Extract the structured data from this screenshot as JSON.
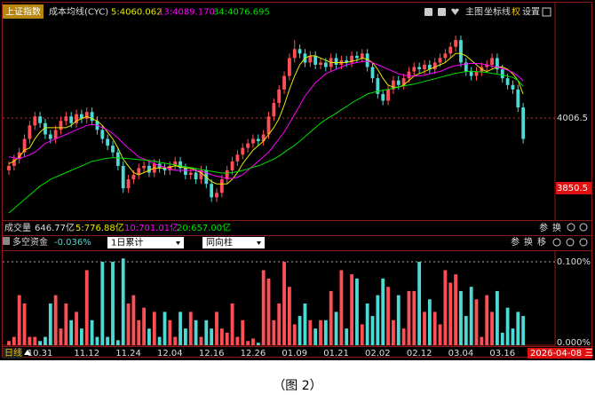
{
  "chart_data": [
    {
      "type": "candlestick",
      "title": "上证指数",
      "subtitle": "成本均线(CYC)",
      "up_color": "#ff4f55",
      "down_color": "#4fd9d4",
      "open": [
        3890,
        3900,
        3915,
        3930,
        3960,
        3990,
        4010,
        3995,
        3970,
        3960,
        3980,
        4000,
        4010,
        3995,
        4015,
        4005,
        4020,
        4000,
        3980,
        3960,
        3945,
        3930,
        3900,
        3850,
        3870,
        3880,
        3895,
        3900,
        3885,
        3905,
        3895,
        3890,
        3900,
        3910,
        3895,
        3880,
        3885,
        3870,
        3890,
        3860,
        3830,
        3840,
        3870,
        3890,
        3910,
        3925,
        3940,
        3950,
        3960,
        3955,
        3970,
        4010,
        4040,
        4070,
        4100,
        4140,
        4160,
        4150,
        4130,
        4145,
        4125,
        4130,
        4120,
        4140,
        4125,
        4135,
        4130,
        4145,
        4140,
        4150,
        4120,
        4095,
        4060,
        4045,
        4070,
        4090,
        4080,
        4095,
        4110,
        4120,
        4115,
        4125,
        4115,
        4130,
        4140,
        4150,
        4165,
        4180,
        4130,
        4110,
        4100,
        4110,
        4120,
        4125,
        4140,
        4115,
        4095,
        4080,
        4070,
        4030
      ],
      "high": [
        3910,
        3925,
        3940,
        3970,
        4000,
        4020,
        4020,
        4005,
        3980,
        3990,
        4010,
        4020,
        4020,
        4025,
        4025,
        4030,
        4030,
        4010,
        3990,
        3970,
        3955,
        3940,
        3910,
        3880,
        3890,
        3905,
        3910,
        3910,
        3915,
        3915,
        3905,
        3910,
        3920,
        3920,
        3905,
        3895,
        3895,
        3900,
        3900,
        3870,
        3850,
        3880,
        3900,
        3920,
        3935,
        3950,
        3960,
        3970,
        3970,
        3980,
        4020,
        4050,
        4080,
        4110,
        4150,
        4180,
        4170,
        4160,
        4155,
        4155,
        4140,
        4140,
        4150,
        4150,
        4145,
        4145,
        4155,
        4155,
        4160,
        4160,
        4130,
        4105,
        4070,
        4080,
        4100,
        4100,
        4105,
        4120,
        4130,
        4130,
        4135,
        4135,
        4140,
        4150,
        4160,
        4175,
        4190,
        4190,
        4140,
        4120,
        4120,
        4130,
        4135,
        4150,
        4150,
        4125,
        4105,
        4090,
        4080,
        4040
      ],
      "low": [
        3880,
        3890,
        3905,
        3920,
        3950,
        3980,
        3985,
        3960,
        3950,
        3950,
        3970,
        3990,
        3985,
        3985,
        3995,
        3995,
        3990,
        3970,
        3950,
        3935,
        3920,
        3890,
        3840,
        3840,
        3860,
        3870,
        3885,
        3875,
        3875,
        3885,
        3880,
        3880,
        3890,
        3885,
        3870,
        3870,
        3860,
        3860,
        3850,
        3820,
        3820,
        3830,
        3860,
        3880,
        3900,
        3915,
        3930,
        3940,
        3945,
        3945,
        3960,
        4000,
        4030,
        4060,
        4090,
        4130,
        4140,
        4120,
        4120,
        4115,
        4115,
        4110,
        4110,
        4115,
        4115,
        4120,
        4120,
        4130,
        4130,
        4110,
        4085,
        4050,
        4035,
        4035,
        4060,
        4070,
        4070,
        4085,
        4100,
        4105,
        4105,
        4105,
        4105,
        4120,
        4130,
        4140,
        4155,
        4120,
        4100,
        4090,
        4090,
        4100,
        4110,
        4115,
        4105,
        4085,
        4070,
        4060,
        4020,
        3950
      ],
      "close": [
        3900,
        3915,
        3930,
        3960,
        3990,
        4010,
        3995,
        3970,
        3960,
        3980,
        4000,
        4010,
        3995,
        4015,
        4005,
        4020,
        4000,
        3980,
        3960,
        3945,
        3930,
        3900,
        3850,
        3870,
        3880,
        3895,
        3900,
        3885,
        3905,
        3895,
        3890,
        3900,
        3910,
        3895,
        3880,
        3885,
        3870,
        3890,
        3860,
        3830,
        3840,
        3870,
        3890,
        3910,
        3925,
        3940,
        3950,
        3960,
        3955,
        3970,
        4010,
        4040,
        4070,
        4100,
        4140,
        4160,
        4150,
        4130,
        4145,
        4125,
        4130,
        4120,
        4140,
        4125,
        4135,
        4130,
        4145,
        4140,
        4150,
        4120,
        4095,
        4060,
        4045,
        4070,
        4090,
        4080,
        4095,
        4110,
        4120,
        4115,
        4125,
        4115,
        4130,
        4140,
        4150,
        4165,
        4180,
        4130,
        4110,
        4100,
        4110,
        4120,
        4125,
        4140,
        4115,
        4095,
        4080,
        4070,
        4030,
        3960
      ],
      "series": [
        {
          "name": "5:4060.062",
          "color": "#e8e800",
          "values": [
            3905,
            3910,
            3920,
            3935,
            3940,
            3960,
            3975,
            3985,
            3985,
            3985,
            3985,
            3985,
            3990,
            4000,
            4005,
            4010,
            4005,
            4000,
            3990,
            3975,
            3960,
            3940,
            3915,
            3900,
            3885,
            3880,
            3885,
            3890,
            3895,
            3895,
            3895,
            3897,
            3900,
            3898,
            3895,
            3895,
            3890,
            3885,
            3875,
            3865,
            3860,
            3860,
            3860,
            3870,
            3885,
            3905,
            3920,
            3935,
            3945,
            3955,
            3970,
            3985,
            4005,
            4035,
            4070,
            4100,
            4125,
            4140,
            4145,
            4145,
            4140,
            4135,
            4130,
            4130,
            4130,
            4130,
            4133,
            4135,
            4140,
            4137,
            4130,
            4115,
            4095,
            4080,
            4075,
            4075,
            4080,
            4090,
            4100,
            4105,
            4110,
            4115,
            4120,
            4125,
            4130,
            4140,
            4150,
            4150,
            4145,
            4135,
            4125,
            4115,
            4110,
            4115,
            4120,
            4120,
            4115,
            4105,
            4090,
            4060
          ]
        },
        {
          "name": "13:4089.170",
          "color": "#ff00ff",
          "values": [
            3920,
            3918,
            3916,
            3920,
            3925,
            3930,
            3940,
            3950,
            3955,
            3960,
            3965,
            3970,
            3975,
            3980,
            3985,
            3990,
            3992,
            3990,
            3985,
            3980,
            3972,
            3962,
            3950,
            3940,
            3930,
            3920,
            3915,
            3910,
            3905,
            3900,
            3897,
            3893,
            3890,
            3890,
            3890,
            3890,
            3890,
            3888,
            3885,
            3880,
            3877,
            3875,
            3872,
            3872,
            3875,
            3880,
            3890,
            3900,
            3910,
            3920,
            3930,
            3945,
            3960,
            3975,
            3995,
            4015,
            4035,
            4055,
            4070,
            4085,
            4095,
            4105,
            4110,
            4115,
            4120,
            4125,
            4128,
            4130,
            4132,
            4133,
            4130,
            4125,
            4120,
            4115,
            4110,
            4105,
            4102,
            4100,
            4100,
            4100,
            4102,
            4105,
            4108,
            4110,
            4115,
            4120,
            4123,
            4125,
            4127,
            4128,
            4128,
            4127,
            4125,
            4122,
            4120,
            4117,
            4113,
            4108,
            4100,
            4089
          ]
        },
        {
          "name": "34:4076.695",
          "color": "#00e000",
          "values": [
            3795,
            3805,
            3815,
            3825,
            3835,
            3845,
            3855,
            3862,
            3870,
            3875,
            3880,
            3885,
            3890,
            3895,
            3900,
            3905,
            3910,
            3912,
            3915,
            3917,
            3918,
            3918,
            3917,
            3916,
            3915,
            3914,
            3913,
            3912,
            3910,
            3908,
            3906,
            3904,
            3902,
            3900,
            3898,
            3896,
            3894,
            3892,
            3890,
            3888,
            3886,
            3884,
            3884,
            3885,
            3887,
            3890,
            3893,
            3897,
            3900,
            3905,
            3910,
            3915,
            3922,
            3930,
            3938,
            3946,
            3955,
            3965,
            3975,
            3985,
            3995,
            4003,
            4010,
            4017,
            4025,
            4032,
            4040,
            4047,
            4053,
            4060,
            4063,
            4066,
            4068,
            4070,
            4073,
            4075,
            4078,
            4080,
            4082,
            4085,
            4088,
            4091,
            4094,
            4097,
            4100,
            4103,
            4106,
            4108,
            4110,
            4111,
            4110,
            4109,
            4108,
            4106,
            4104,
            4102,
            4100,
            4097,
            4090,
            4077
          ]
        }
      ],
      "ylim": [
        3783.3,
        4225.7
      ],
      "yticks": [
        4006.5
      ],
      "price_marker": 3850.5,
      "toolbar": [
        "主图",
        "坐标线",
        "权",
        "设置"
      ]
    },
    {
      "type": "bar",
      "title": "多空资金",
      "subtitle": "-0.036%",
      "dropdowns": [
        "1日累计",
        "同向柱"
      ],
      "buttons": [
        "参",
        "换",
        "移"
      ],
      "values": [
        0.005,
        0.01,
        0.06,
        0.05,
        0.01,
        0.01,
        0.005,
        0.01,
        0.05,
        0.06,
        0.02,
        0.05,
        0.03,
        0.04,
        0.02,
        0.09,
        0.03,
        0.01,
        0.1,
        0.01,
        0.1,
        0.006,
        0.104,
        0.05,
        0.06,
        0.03,
        0.045,
        0.02,
        0.04,
        0.01,
        0.04,
        0.03,
        0.01,
        0.04,
        0.02,
        0.04,
        0.03,
        0.01,
        0.03,
        0.02,
        0.04,
        0.02,
        0.015,
        0.05,
        0.01,
        0.03,
        0.005,
        0.008,
        0.003,
        0.09,
        0.08,
        0.03,
        0.05,
        0.1,
        0.07,
        0.025,
        0.035,
        0.05,
        0.03,
        0.02,
        0.03,
        0.03,
        0.065,
        0.04,
        0.09,
        0.02,
        0.085,
        0.08,
        0.025,
        0.05,
        0.035,
        0.06,
        0.08,
        0.07,
        0.03,
        0.06,
        0.02,
        0.065,
        0.065,
        0.1,
        0.04,
        0.055,
        0.04,
        0.025,
        0.09,
        0.075,
        0.085,
        0.065,
        0.035,
        0.07,
        0.055,
        0.01,
        0.06,
        0.04,
        0.065,
        0.015,
        0.045,
        0.02,
        0.04,
        0.035
      ],
      "ylim": [
        0,
        0.1128
      ],
      "yticks": [
        {
          "value": 0.1,
          "label": "0.100%"
        },
        {
          "value": 0,
          "label": "0.000%"
        }
      ],
      "categories": [
        null,
        null,
        null,
        null,
        null,
        null,
        "10.31",
        null,
        null,
        null,
        null,
        null,
        null,
        null,
        null,
        "11.12",
        null,
        null,
        null,
        null,
        null,
        null,
        null,
        "11.24",
        null,
        null,
        null,
        null,
        null,
        null,
        null,
        "12.04",
        null,
        null,
        null,
        null,
        null,
        null,
        null,
        "12.16",
        null,
        null,
        null,
        null,
        null,
        null,
        null,
        "12.26",
        null,
        null,
        null,
        null,
        null,
        null,
        null,
        "01.09",
        null,
        null,
        null,
        null,
        null,
        null,
        null,
        "01.21",
        null,
        null,
        null,
        null,
        null,
        null,
        null,
        "02.02",
        null,
        null,
        null,
        null,
        null,
        null,
        null,
        "02.12",
        null,
        null,
        null,
        null,
        null,
        null,
        null,
        "03.04",
        null,
        null,
        null,
        null,
        null,
        null,
        null,
        "03.16",
        null,
        null,
        null,
        null
      ],
      "period": "日线",
      "last_date": "2026-04-08 三"
    }
  ],
  "volume_bar": {
    "label": "成交量",
    "value": "646.77亿",
    "ma": [
      {
        "name": "5:776.88亿",
        "color": "#e8e800"
      },
      {
        "name": "10:701.01亿",
        "color": "#ff00ff"
      },
      {
        "name": "20:657.00亿",
        "color": "#00e000"
      }
    ],
    "buttons": [
      "参",
      "换"
    ]
  },
  "caption": "（图 2）"
}
